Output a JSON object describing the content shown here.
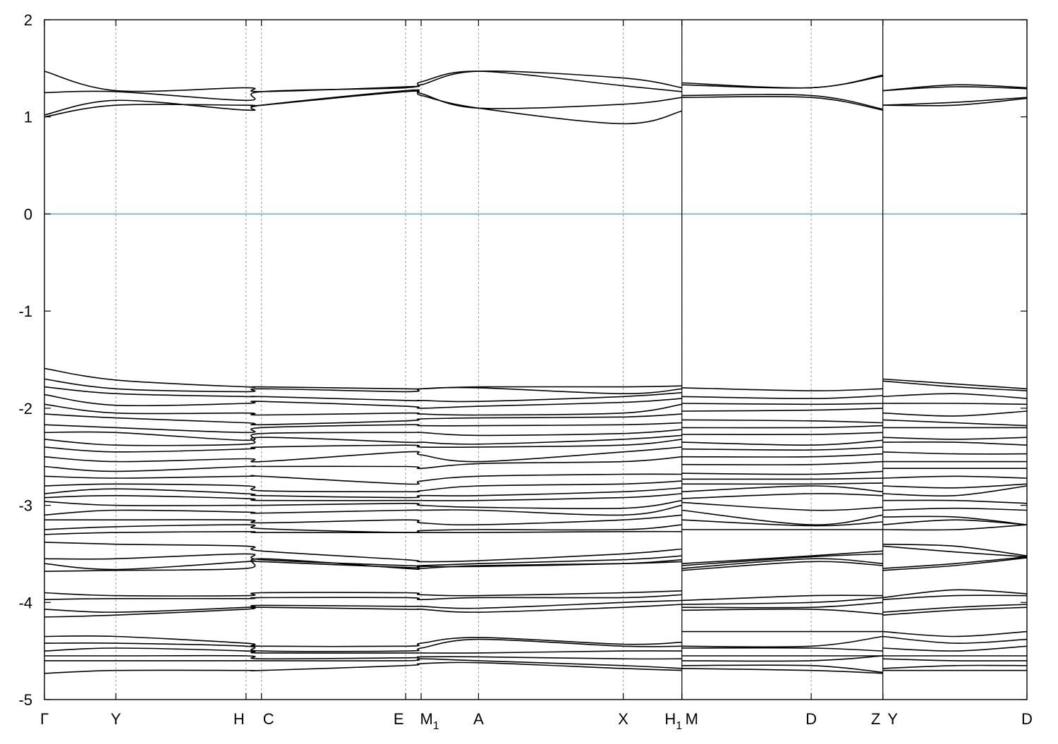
{
  "chart_data": {
    "type": "line",
    "title": "",
    "xlabel": "",
    "ylabel": "",
    "ylim": [
      -5,
      2
    ],
    "yticks": [
      "2",
      "1",
      "0",
      "-1",
      "-2",
      "-3",
      "-4",
      "-5"
    ],
    "ytick_values": [
      2,
      1,
      0,
      -1,
      -2,
      -3,
      -4,
      -5
    ],
    "fermi_level": 0,
    "fermi_color": "#5ab4c8",
    "band_color": "#000000",
    "grid": "vertical dashed lines at high-symmetry points",
    "kpath": [
      {
        "label": "Γ",
        "sub": "",
        "x": 0.0
      },
      {
        "label": "Y",
        "sub": "",
        "x": 0.0727
      },
      {
        "label": "H",
        "sub": "",
        "x": 0.2052
      },
      {
        "label": "C",
        "sub": "",
        "x": 0.2209
      },
      {
        "label": "E",
        "sub": "",
        "x": 0.3677
      },
      {
        "label": "M",
        "sub": "1",
        "x": 0.3834
      },
      {
        "label": "A",
        "sub": "",
        "x": 0.4418
      },
      {
        "label": "X",
        "sub": "",
        "x": 0.5891
      },
      {
        "label": "H",
        "sub": "1",
        "x": 0.6488
      },
      {
        "label": "M",
        "sub": "",
        "x": 0.6488
      },
      {
        "label": "D",
        "sub": "",
        "x": 0.7804
      },
      {
        "label": "Z",
        "sub": "",
        "x": 0.8533
      },
      {
        "label": "Y",
        "sub": "",
        "x": 0.8533
      },
      {
        "label": "D",
        "sub": "",
        "x": 1.0
      }
    ],
    "segments": [
      {
        "x_from": 0.0,
        "x_to": 0.6488,
        "x": [
          0.0,
          0.0727,
          0.2052,
          0.2209,
          0.3677,
          0.3834,
          0.4418,
          0.5891,
          0.6488
        ],
        "bands": [
          [
            1.0,
            1.12,
            1.12,
            1.12,
            1.26,
            1.22,
            1.09,
            0.93,
            1.06
          ],
          [
            1.02,
            1.17,
            1.07,
            1.12,
            1.27,
            1.24,
            1.09,
            1.13,
            1.2
          ],
          [
            1.25,
            1.26,
            1.17,
            1.26,
            1.3,
            1.36,
            1.47,
            1.32,
            1.26
          ],
          [
            1.47,
            1.27,
            1.3,
            1.26,
            1.31,
            1.33,
            1.47,
            1.4,
            1.3
          ],
          [
            -1.59,
            -1.71,
            -1.78,
            -1.78,
            -1.8,
            -1.8,
            -1.78,
            -1.78,
            -1.77
          ],
          [
            -1.7,
            -1.8,
            -1.83,
            -1.8,
            -1.83,
            -1.8,
            -1.79,
            -1.85,
            -1.8
          ],
          [
            -1.78,
            -1.85,
            -1.88,
            -1.88,
            -1.92,
            -1.92,
            -1.93,
            -1.88,
            -1.84
          ],
          [
            -1.86,
            -1.97,
            -1.95,
            -1.93,
            -1.98,
            -2.0,
            -1.98,
            -1.94,
            -1.9
          ],
          [
            -1.96,
            -2.05,
            -2.05,
            -2.07,
            -2.05,
            -2.06,
            -2.07,
            -2.05,
            -1.96
          ],
          [
            -2.06,
            -2.1,
            -2.15,
            -2.17,
            -2.13,
            -2.11,
            -2.1,
            -2.09,
            -2.06
          ],
          [
            -2.17,
            -2.2,
            -2.25,
            -2.2,
            -2.17,
            -2.18,
            -2.18,
            -2.17,
            -2.15
          ],
          [
            -2.25,
            -2.25,
            -2.33,
            -2.26,
            -2.25,
            -2.25,
            -2.28,
            -2.26,
            -2.22
          ],
          [
            -2.32,
            -2.38,
            -2.37,
            -2.3,
            -2.35,
            -2.35,
            -2.37,
            -2.32,
            -2.28
          ],
          [
            -2.4,
            -2.45,
            -2.42,
            -2.4,
            -2.38,
            -2.4,
            -2.4,
            -2.38,
            -2.32
          ],
          [
            -2.5,
            -2.55,
            -2.52,
            -2.55,
            -2.45,
            -2.48,
            -2.55,
            -2.45,
            -2.4
          ],
          [
            -2.6,
            -2.65,
            -2.6,
            -2.6,
            -2.6,
            -2.62,
            -2.57,
            -2.55,
            -2.5
          ],
          [
            -2.7,
            -2.72,
            -2.7,
            -2.7,
            -2.78,
            -2.75,
            -2.7,
            -2.68,
            -2.68
          ],
          [
            -2.8,
            -2.78,
            -2.8,
            -2.85,
            -2.86,
            -2.85,
            -2.8,
            -2.78,
            -2.75
          ],
          [
            -2.88,
            -2.83,
            -2.88,
            -2.9,
            -2.92,
            -2.9,
            -2.9,
            -2.86,
            -2.82
          ],
          [
            -2.92,
            -2.9,
            -2.93,
            -2.95,
            -2.95,
            -2.95,
            -2.95,
            -2.92,
            -2.88
          ],
          [
            -2.96,
            -3.0,
            -3.0,
            -3.0,
            -2.98,
            -3.0,
            -3.02,
            -3.03,
            -2.95
          ],
          [
            -3.1,
            -3.05,
            -3.07,
            -3.08,
            -3.05,
            -3.05,
            -3.05,
            -3.1,
            -3.0
          ],
          [
            -3.15,
            -3.15,
            -3.15,
            -3.18,
            -3.15,
            -3.18,
            -3.2,
            -3.15,
            -3.1
          ],
          [
            -3.25,
            -3.22,
            -3.2,
            -3.24,
            -3.28,
            -3.26,
            -3.25,
            -3.25,
            -3.2
          ],
          [
            -3.3,
            -3.28,
            -3.27,
            -3.28,
            -3.28,
            -3.28,
            -3.28,
            -3.27,
            -3.27
          ],
          [
            -3.38,
            -3.4,
            -3.42,
            -3.47,
            -3.56,
            -3.58,
            -3.57,
            -3.5,
            -3.45
          ],
          [
            -3.55,
            -3.55,
            -3.5,
            -3.56,
            -3.62,
            -3.62,
            -3.6,
            -3.56,
            -3.52
          ],
          [
            -3.6,
            -3.66,
            -3.58,
            -3.58,
            -3.64,
            -3.63,
            -3.63,
            -3.6,
            -3.56
          ],
          [
            -3.68,
            -3.67,
            -3.65,
            -3.55,
            -3.65,
            -3.65,
            -3.62,
            -3.6,
            -3.58
          ],
          [
            -3.9,
            -3.93,
            -3.93,
            -3.9,
            -3.9,
            -3.92,
            -3.93,
            -3.9,
            -3.88
          ],
          [
            -3.97,
            -3.96,
            -3.96,
            -3.95,
            -3.95,
            -3.97,
            -3.95,
            -3.95,
            -3.92
          ],
          [
            -4.07,
            -4.1,
            -4.05,
            -4.03,
            -4.04,
            -4.04,
            -4.06,
            -4.0,
            -3.98
          ],
          [
            -4.15,
            -4.13,
            -4.07,
            -4.05,
            -4.07,
            -4.07,
            -4.1,
            -4.05,
            -4.02
          ],
          [
            -4.35,
            -4.35,
            -4.42,
            -4.45,
            -4.45,
            -4.42,
            -4.36,
            -4.43,
            -4.41
          ],
          [
            -4.42,
            -4.42,
            -4.45,
            -4.5,
            -4.5,
            -4.47,
            -4.38,
            -4.45,
            -4.45
          ],
          [
            -4.5,
            -4.47,
            -4.5,
            -4.52,
            -4.52,
            -4.52,
            -4.52,
            -4.5,
            -4.5
          ],
          [
            -4.55,
            -4.55,
            -4.55,
            -4.58,
            -4.57,
            -4.56,
            -4.56,
            -4.58,
            -4.58
          ],
          [
            -4.6,
            -4.6,
            -4.6,
            -4.6,
            -4.6,
            -4.58,
            -4.6,
            -4.65,
            -4.68
          ],
          [
            -4.73,
            -4.7,
            -4.7,
            -4.7,
            -4.65,
            -4.63,
            -4.62,
            -4.68,
            -4.7
          ]
        ]
      },
      {
        "x_from": 0.6488,
        "x_to": 0.8533,
        "x": [
          0.6488,
          0.7804,
          0.8533
        ],
        "bands": [
          [
            1.2,
            1.2,
            1.07
          ],
          [
            1.22,
            1.22,
            1.08
          ],
          [
            1.33,
            1.3,
            1.42
          ],
          [
            1.35,
            1.3,
            1.43
          ],
          [
            -1.79,
            -1.82,
            -1.8
          ],
          [
            -1.88,
            -1.9,
            -1.87
          ],
          [
            -1.95,
            -1.96,
            -1.95
          ],
          [
            -2.03,
            -2.02,
            -2.0
          ],
          [
            -2.12,
            -2.13,
            -2.15
          ],
          [
            -2.2,
            -2.2,
            -2.18
          ],
          [
            -2.27,
            -2.27,
            -2.25
          ],
          [
            -2.35,
            -2.38,
            -2.33
          ],
          [
            -2.42,
            -2.43,
            -2.4
          ],
          [
            -2.5,
            -2.5,
            -2.47
          ],
          [
            -2.58,
            -2.58,
            -2.55
          ],
          [
            -2.67,
            -2.68,
            -2.65
          ],
          [
            -2.73,
            -2.73,
            -2.72
          ],
          [
            -2.78,
            -2.78,
            -2.77
          ],
          [
            -2.86,
            -2.8,
            -2.86
          ],
          [
            -2.93,
            -2.88,
            -2.9
          ],
          [
            -2.97,
            -3.05,
            -3.02
          ],
          [
            -3.05,
            -3.2,
            -3.1
          ],
          [
            -3.15,
            -3.21,
            -3.17
          ],
          [
            -3.25,
            -3.25,
            -3.25
          ],
          [
            -3.6,
            -3.52,
            -3.47
          ],
          [
            -3.62,
            -3.53,
            -3.5
          ],
          [
            -3.65,
            -3.55,
            -3.6
          ],
          [
            -3.67,
            -3.58,
            -3.62
          ],
          [
            -3.98,
            -3.93,
            -3.93
          ],
          [
            -4.02,
            -4.0,
            -3.95
          ],
          [
            -4.05,
            -4.05,
            -4.0
          ],
          [
            -4.08,
            -4.07,
            -4.12
          ],
          [
            -4.3,
            -4.3,
            -4.3
          ],
          [
            -4.45,
            -4.45,
            -4.35
          ],
          [
            -4.47,
            -4.47,
            -4.5
          ],
          [
            -4.55,
            -4.55,
            -4.55
          ],
          [
            -4.6,
            -4.6,
            -4.55
          ],
          [
            -4.65,
            -4.65,
            -4.72
          ],
          [
            -4.68,
            -4.7,
            -4.73
          ]
        ]
      },
      {
        "x_from": 0.8533,
        "x_to": 1.0,
        "x": [
          0.8533,
          0.9267,
          1.0
        ],
        "bands": [
          [
            1.12,
            1.12,
            1.19
          ],
          [
            1.12,
            1.15,
            1.2
          ],
          [
            1.27,
            1.31,
            1.29
          ],
          [
            1.27,
            1.33,
            1.3
          ],
          [
            -1.7,
            -1.75,
            -1.8
          ],
          [
            -1.72,
            -1.78,
            -1.82
          ],
          [
            -1.88,
            -1.85,
            -1.9
          ],
          [
            -1.95,
            -1.95,
            -1.96
          ],
          [
            -2.05,
            -2.08,
            -2.03
          ],
          [
            -2.12,
            -2.15,
            -2.18
          ],
          [
            -2.2,
            -2.2,
            -2.2
          ],
          [
            -2.3,
            -2.32,
            -2.3
          ],
          [
            -2.35,
            -2.35,
            -2.38
          ],
          [
            -2.45,
            -2.47,
            -2.47
          ],
          [
            -2.55,
            -2.55,
            -2.55
          ],
          [
            -2.62,
            -2.62,
            -2.62
          ],
          [
            -2.72,
            -2.7,
            -2.72
          ],
          [
            -2.8,
            -2.82,
            -2.78
          ],
          [
            -2.88,
            -2.9,
            -2.8
          ],
          [
            -2.95,
            -2.95,
            -2.98
          ],
          [
            -3.05,
            -3.03,
            -3.05
          ],
          [
            -3.12,
            -3.12,
            -3.2
          ],
          [
            -3.2,
            -3.15,
            -3.2
          ],
          [
            -3.25,
            -3.25,
            -3.2
          ],
          [
            -3.4,
            -3.42,
            -3.52
          ],
          [
            -3.42,
            -3.48,
            -3.53
          ],
          [
            -3.65,
            -3.6,
            -3.53
          ],
          [
            -3.67,
            -3.62,
            -3.54
          ],
          [
            -3.95,
            -3.87,
            -3.91
          ],
          [
            -3.97,
            -3.93,
            -3.93
          ],
          [
            -4.1,
            -4.05,
            -4.02
          ],
          [
            -4.13,
            -4.08,
            -4.05
          ],
          [
            -4.3,
            -4.35,
            -4.3
          ],
          [
            -4.35,
            -4.42,
            -4.38
          ],
          [
            -4.47,
            -4.5,
            -4.45
          ],
          [
            -4.55,
            -4.55,
            -4.55
          ],
          [
            -4.58,
            -4.6,
            -4.6
          ],
          [
            -4.68,
            -4.65,
            -4.65
          ],
          [
            -4.7,
            -4.7,
            -4.7
          ]
        ]
      }
    ]
  }
}
